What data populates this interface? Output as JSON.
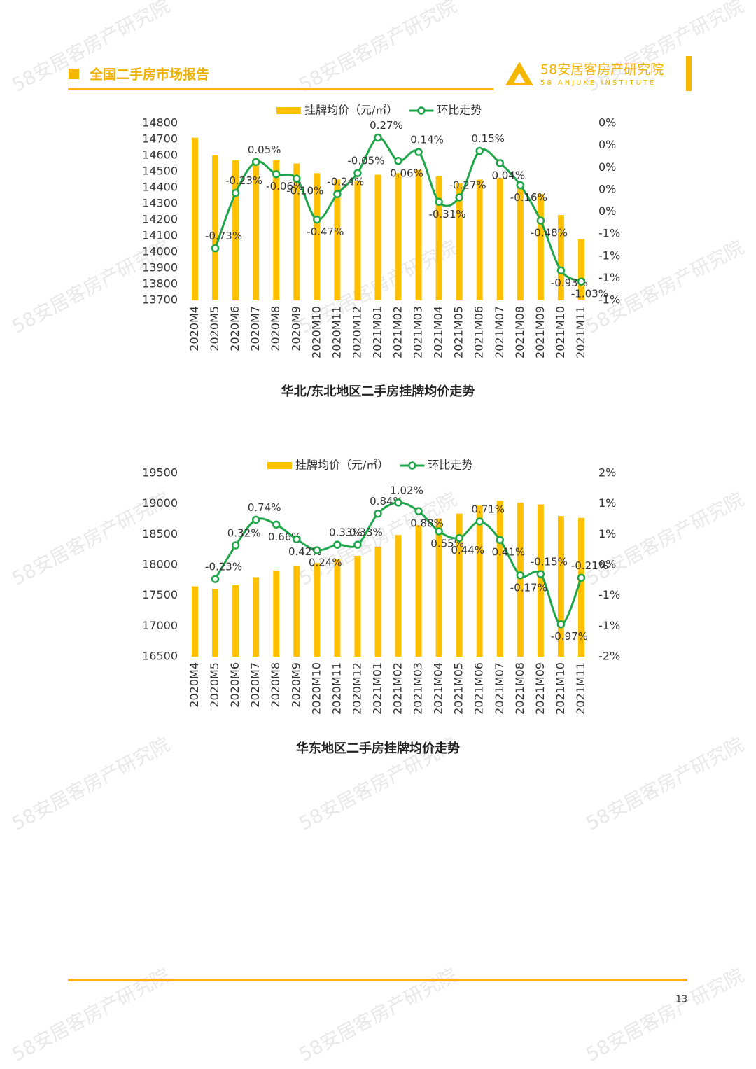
{
  "header": {
    "title": "全国二手房市场报告",
    "logo": "58安居客房产研究院",
    "logo_sub": "58 ANJUKE INSTITUTE"
  },
  "watermark": "58安居客房产研究院",
  "chart_data": [
    {
      "type": "combo",
      "title": "华北/东北地区二手房挂牌均价走势",
      "categories": [
        "2020M4",
        "2020M5",
        "2020M6",
        "2020M7",
        "2020M8",
        "2020M9",
        "2020M10",
        "2020M11",
        "2020M12",
        "2021M01",
        "2021M02",
        "2021M03",
        "2021M04",
        "2021M05",
        "2021M06",
        "2021M07",
        "2021M08",
        "2021M09",
        "2021M10",
        "2021M11"
      ],
      "series": [
        {
          "name": "挂牌均价（元/㎡）",
          "type": "bar",
          "color": "#ffc000",
          "values": [
            14710,
            14600,
            14570,
            14580,
            14570,
            14550,
            14490,
            14450,
            14440,
            14480,
            14490,
            14510,
            14470,
            14430,
            14450,
            14460,
            14430,
            14360,
            14230,
            14080
          ]
        },
        {
          "name": "环比走势",
          "type": "line",
          "color": "#1fa64a",
          "axis": "y2",
          "values": [
            null,
            -0.73,
            -0.23,
            0.05,
            -0.06,
            -0.1,
            -0.47,
            -0.24,
            -0.05,
            0.27,
            0.06,
            0.14,
            -0.31,
            -0.27,
            0.15,
            0.04,
            -0.16,
            -0.48,
            -0.93,
            -1.03
          ],
          "value_labels": [
            null,
            "-0.73%",
            "-0.23%",
            "0.05%",
            "-0.06%",
            "-0.10%",
            "-0.47%",
            "-0.24%",
            "-0.05%",
            "0.27%",
            "0.06%",
            "0.14%",
            "-0.31%",
            "-0.27%",
            "0.15%",
            "0.04%",
            "-0.16%",
            "-0.48%",
            "-0.93%",
            "-1.03%"
          ]
        }
      ],
      "ylim": [
        13700,
        14800
      ],
      "yticks": [
        13700,
        13800,
        13900,
        14000,
        14100,
        14200,
        14300,
        14400,
        14500,
        14600,
        14700,
        14800
      ],
      "y2lim": [
        -1.2,
        0.4
      ],
      "y2ticks": [
        {
          "value": -1.2,
          "label": "-1%"
        },
        {
          "value": -1.0,
          "label": "-1%"
        },
        {
          "value": -0.8,
          "label": "-1%"
        },
        {
          "value": -0.6,
          "label": "-1%"
        },
        {
          "value": -0.4,
          "label": "0%"
        },
        {
          "value": -0.2,
          "label": "0%"
        },
        {
          "value": 0,
          "label": "0%"
        },
        {
          "value": 0.2,
          "label": "0%"
        },
        {
          "value": 0.4,
          "label": "0%"
        }
      ],
      "grid": false
    },
    {
      "type": "combo",
      "title": "华东地区二手房挂牌均价走势",
      "categories": [
        "2020M4",
        "2020M5",
        "2020M6",
        "2020M7",
        "2020M8",
        "2020M9",
        "2020M10",
        "2020M11",
        "2020M12",
        "2021M01",
        "2021M02",
        "2021M03",
        "2021M04",
        "2021M05",
        "2021M06",
        "2021M07",
        "2021M08",
        "2021M09",
        "2021M10",
        "2021M11"
      ],
      "series": [
        {
          "name": "挂牌均价（元/㎡）",
          "type": "bar",
          "color": "#ffc000",
          "values": [
            17650,
            17610,
            17670,
            17800,
            17910,
            17990,
            18030,
            18090,
            18150,
            18300,
            18490,
            18650,
            18760,
            18840,
            18970,
            19050,
            19020,
            18990,
            18800,
            18770
          ]
        },
        {
          "name": "环比走势",
          "type": "line",
          "color": "#1fa64a",
          "axis": "y2",
          "values": [
            null,
            -0.23,
            0.32,
            0.74,
            0.66,
            0.42,
            0.24,
            0.33,
            0.33,
            0.84,
            1.02,
            0.88,
            0.55,
            0.44,
            0.71,
            0.41,
            -0.17,
            -0.15,
            -0.97,
            -0.21
          ],
          "value_labels": [
            null,
            "-0.23%",
            "0.32%",
            "0.74%",
            "0.66%",
            "0.42%",
            "0.24%",
            "0.33%",
            "0.33%",
            "0.84%",
            "1.02%",
            "0.88%",
            "0.55%",
            "0.44%",
            "0.71%",
            "0.41%",
            "-0.17%",
            "-0.15%",
            "-0.97%",
            "-0.21%"
          ]
        }
      ],
      "ylim": [
        16500,
        19500
      ],
      "yticks": [
        16500,
        17000,
        17500,
        18000,
        18500,
        19000,
        19500
      ],
      "y2lim": [
        -1.5,
        1.5
      ],
      "y2ticks": [
        {
          "value": -1.5,
          "label": "-2%"
        },
        {
          "value": -1.0,
          "label": "-1%"
        },
        {
          "value": -0.5,
          "label": "-1%"
        },
        {
          "value": 0,
          "label": "0%"
        },
        {
          "value": 0.5,
          "label": "1%"
        },
        {
          "value": 1.0,
          "label": "1%"
        },
        {
          "value": 1.5,
          "label": "2%"
        }
      ],
      "grid": false
    }
  ],
  "page_number": 13
}
